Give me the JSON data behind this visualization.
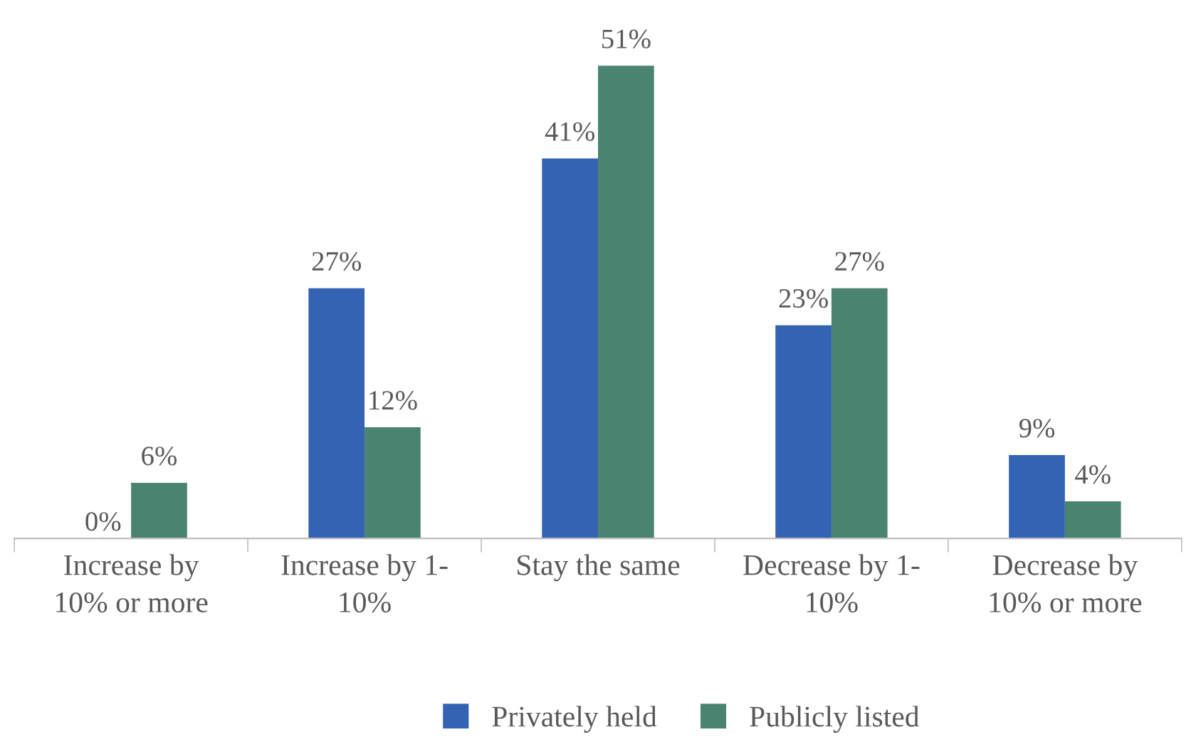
{
  "chart_data": {
    "type": "bar",
    "categories": [
      "Increase by\n10% or more",
      "Increase by 1-\n10%",
      "Stay the same",
      "Decrease by 1-\n10%",
      "Decrease by\n10% or more"
    ],
    "series": [
      {
        "name": "Privately held",
        "color": "#3563b4",
        "values": [
          0,
          27,
          41,
          23,
          9
        ],
        "value_labels": [
          "0%",
          "27%",
          "41%",
          "23%",
          "9%"
        ]
      },
      {
        "name": "Publicly listed",
        "color": "#4a8471",
        "values": [
          6,
          12,
          51,
          27,
          4
        ],
        "value_labels": [
          "6%",
          "12%",
          "51%",
          "27%",
          "4%"
        ]
      }
    ],
    "legend": "bottom",
    "grid": false
  }
}
